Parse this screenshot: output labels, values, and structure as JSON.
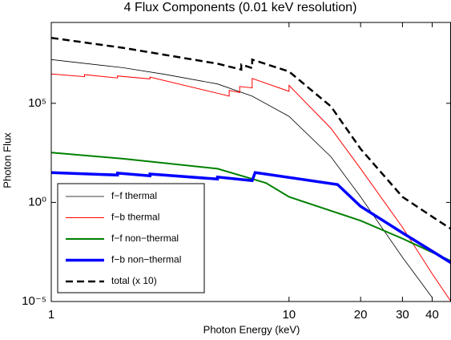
{
  "chart_data": {
    "type": "line",
    "title": "4 Flux Components (0.01 keV resolution)",
    "xlabel": "Photon Energy (keV)",
    "ylabel": "Photon Flux",
    "xscale": "log",
    "yscale": "log",
    "xlim": [
      1,
      48
    ],
    "ylim": [
      1e-05,
      1200000000
    ],
    "xticks": [
      1,
      10,
      20,
      30,
      40
    ],
    "yticks": [
      {
        "value": 1e-05,
        "label": "10⁻⁵"
      },
      {
        "value": 1,
        "label": "10⁰"
      },
      {
        "value": 100000,
        "label": "10⁵"
      }
    ],
    "legend": "lower left",
    "series": [
      {
        "name": "f−f thermal",
        "color": "#000000",
        "linewidth": 0.8,
        "dashed": false,
        "x": [
          1,
          2,
          3,
          5,
          7,
          10,
          15,
          20,
          30,
          40
        ],
        "values": [
          16000000,
          6300000,
          2900000,
          950000,
          230000,
          22000,
          200,
          1.9,
          0.0017,
          1.6e-05
        ]
      },
      {
        "name": "f−b thermal",
        "color": "#ff0000",
        "linewidth": 1,
        "dashed": false,
        "x": [
          1,
          1.38,
          1.38,
          1.9,
          1.9,
          2.6,
          2.6,
          5,
          5.6,
          5.6,
          6.2,
          6.2,
          7,
          7,
          10,
          10,
          15,
          20,
          30,
          40,
          48
        ],
        "values": [
          3000000,
          2200000,
          2800000,
          1900000,
          2400000,
          1700000,
          2100000,
          320000,
          230000,
          450000,
          350000,
          700000,
          600000,
          1800000,
          400000,
          800000,
          5500,
          50,
          0.055,
          0.00025,
          1e-05
        ]
      },
      {
        "name": "f−f non−thermal",
        "color": "#008000",
        "linewidth": 2,
        "dashed": false,
        "x": [
          1,
          2,
          5,
          8,
          10,
          20,
          30,
          48
        ],
        "values": [
          330,
          160,
          50,
          9.5,
          1.9,
          0.12,
          0.015,
          0.0011
        ]
      },
      {
        "name": "f−b non−thermal",
        "color": "#0000ff",
        "linewidth": 3.5,
        "dashed": false,
        "x": [
          1,
          1.9,
          1.9,
          2.6,
          2.6,
          5,
          5,
          7,
          7.2,
          16,
          20,
          30,
          48
        ],
        "values": [
          32,
          24,
          30,
          22,
          27,
          15,
          19,
          12.5,
          32,
          8,
          0.63,
          0.029,
          0.0009
        ]
      },
      {
        "name": "total (x 10)",
        "color": "#000000",
        "linewidth": 2.5,
        "dashed": true,
        "x": [
          1,
          2,
          5,
          6.3,
          6.3,
          7,
          7,
          10,
          15,
          20,
          30,
          40,
          48
        ],
        "values": [
          200000000,
          63000000,
          10000000,
          5000000,
          9000000,
          6000000,
          16000000,
          4000000,
          70000,
          500,
          1.9,
          0.19,
          0.046
        ]
      }
    ]
  }
}
